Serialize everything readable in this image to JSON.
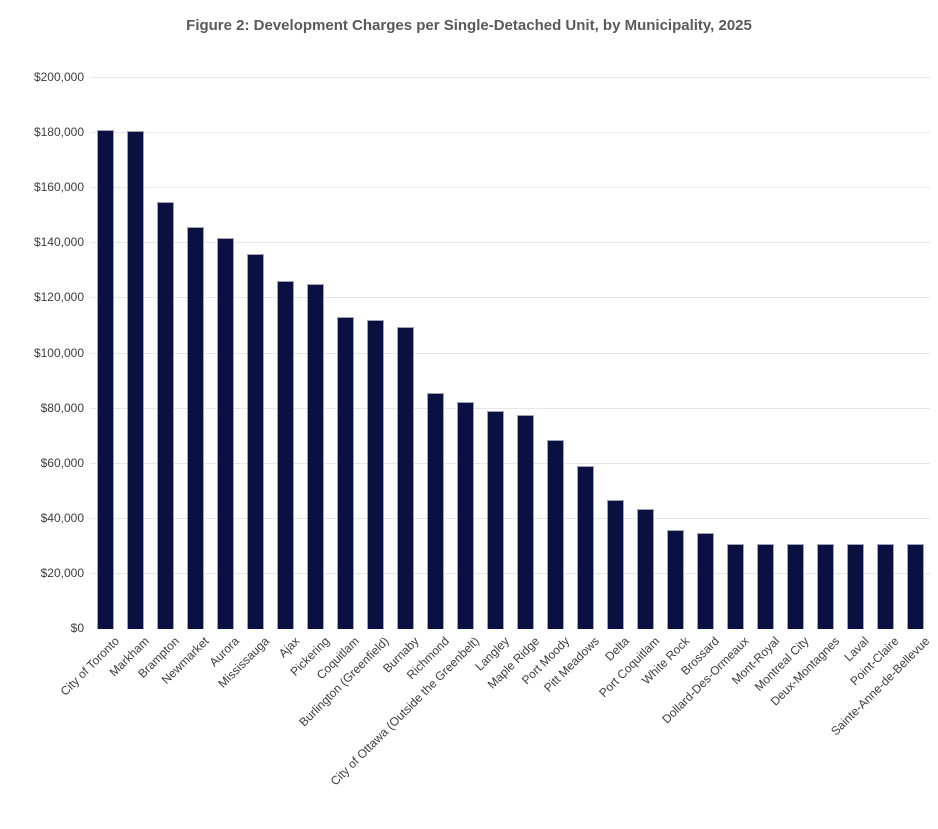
{
  "chart_data": {
    "type": "bar",
    "title": "Figure 2: Development Charges per Single-Detached Unit, by Municipality, 2025",
    "xlabel": "",
    "ylabel": "",
    "ylim": [
      0,
      200000
    ],
    "ytick_interval": 20000,
    "ytick_labels": [
      "$0",
      "$20,000",
      "$40,000",
      "$60,000",
      "$80,000",
      "$100,000",
      "$120,000",
      "$140,000",
      "$160,000",
      "$180,000",
      "$200,000"
    ],
    "grid": "horizontal",
    "legend": "none",
    "bar_color": "#0a1142",
    "bar_border_color": "#9fa3b3",
    "gridline_color": "#e7e7ea",
    "title_color": "#595959",
    "axis_label_color": "#3d3d3d",
    "categories": [
      "City of Toronto",
      "Markham",
      "Brampton",
      "Newmarket",
      "Aurora",
      "Mississauga",
      "Ajax",
      "Pickering",
      "Coquitlam",
      "Burlington (Greenfield)",
      "Burnaby",
      "Richmond",
      "City of Ottawa (Outside the Greenbelt)",
      "Langley",
      "Maple Ridge",
      "Port Moody",
      "Pitt Meadows",
      "Delta",
      "Port Coquitlam",
      "White Rock",
      "Brossard",
      "Dollard-Des-Ormeaux",
      "Mont-Royal",
      "Montreal City",
      "Deux-Montagnes",
      "Laval",
      "Point-Claire",
      "Sainte-Anne-de-Bellevue"
    ],
    "values": [
      181000,
      180800,
      155000,
      146000,
      142000,
      136000,
      126300,
      125100,
      113200,
      112000,
      109500,
      85600,
      82300,
      79100,
      77800,
      68500,
      59300,
      47000,
      43500,
      36000,
      35000,
      31000,
      31000,
      31000,
      31000,
      31000,
      31000,
      31000
    ]
  }
}
